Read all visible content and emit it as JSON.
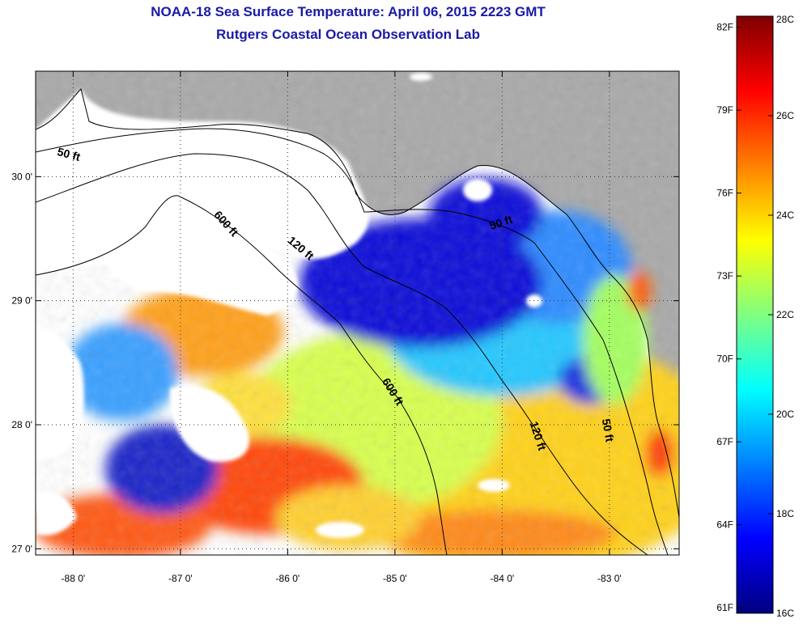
{
  "title": "NOAA-18 Sea Surface Temperature:  April 06, 2015 2223 GMT",
  "subtitle": "Rutgers Coastal Ocean Observation Lab",
  "map": {
    "lon_range": [
      -88.35,
      -82.35
    ],
    "lat_range": [
      26.95,
      30.85
    ],
    "lon_ticks": [
      {
        "value": -88,
        "label": "-88 0'"
      },
      {
        "value": -87,
        "label": "-87 0'"
      },
      {
        "value": -86,
        "label": "-86 0'"
      },
      {
        "value": -85,
        "label": "-85 0'"
      },
      {
        "value": -84,
        "label": "-84 0'"
      },
      {
        "value": -83,
        "label": "-83 0'"
      }
    ],
    "lat_ticks": [
      {
        "value": 30,
        "label": "30 0'"
      },
      {
        "value": 29,
        "label": "29 0'"
      },
      {
        "value": 28,
        "label": "28 0'"
      },
      {
        "value": 27,
        "label": "27 0'"
      }
    ],
    "contours": [
      {
        "label": "50 ft",
        "lon": -88.05,
        "lat": 30.15,
        "rotate": 15
      },
      {
        "label": "600 ft",
        "lon": -86.6,
        "lat": 29.6,
        "rotate": 48
      },
      {
        "label": "120 ft",
        "lon": -85.9,
        "lat": 29.4,
        "rotate": 40
      },
      {
        "label": "50 ft",
        "lon": -84.0,
        "lat": 29.6,
        "rotate": -18
      },
      {
        "label": "600 ft",
        "lon": -85.05,
        "lat": 28.25,
        "rotate": 58
      },
      {
        "label": "120 ft",
        "lon": -83.7,
        "lat": 27.9,
        "rotate": 72
      },
      {
        "label": "50 ft",
        "lon": -83.05,
        "lat": 27.95,
        "rotate": 80
      }
    ],
    "land_color": "#a9a9a9",
    "cloud_color": "#ffffff"
  },
  "colorbar": {
    "colors": [
      "#00007f",
      "#0000ff",
      "#0080ff",
      "#00ffff",
      "#80ff80",
      "#ffff00",
      "#ff8000",
      "#ff0000",
      "#7f0000"
    ],
    "celsius": [
      {
        "value": 16,
        "label": "16C"
      },
      {
        "value": 18,
        "label": "18C"
      },
      {
        "value": 20,
        "label": "20C"
      },
      {
        "value": 22,
        "label": "22C"
      },
      {
        "value": 24,
        "label": "24C"
      },
      {
        "value": 26,
        "label": "26C"
      },
      {
        "value": 28,
        "label": "28C"
      }
    ],
    "fahrenheit": [
      {
        "value": 61,
        "label": "61F"
      },
      {
        "value": 64,
        "label": "64F"
      },
      {
        "value": 67,
        "label": "67F"
      },
      {
        "value": 70,
        "label": "70F"
      },
      {
        "value": 73,
        "label": "73F"
      },
      {
        "value": 76,
        "label": "76F"
      },
      {
        "value": 79,
        "label": "79F"
      },
      {
        "value": 82,
        "label": "82F"
      }
    ]
  }
}
